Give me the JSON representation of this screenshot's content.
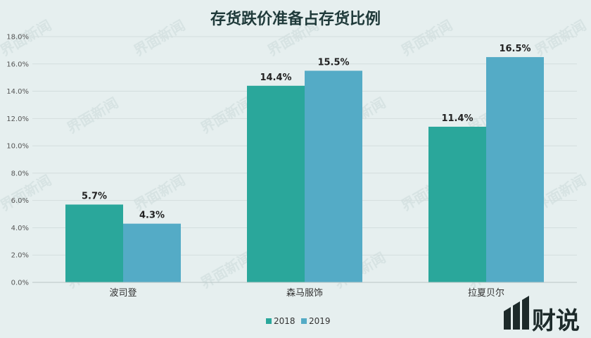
{
  "chart_data": {
    "type": "bar",
    "title": "存货跌价准备占存货比例",
    "categories": [
      "波司登",
      "森马服饰",
      "拉夏贝尔"
    ],
    "series": [
      {
        "name": "2018",
        "values": [
          5.7,
          14.4,
          11.4
        ],
        "labels": [
          "5.7%",
          "14.4%",
          "11.4%"
        ],
        "color": "#2aa79b"
      },
      {
        "name": "2019",
        "values": [
          4.3,
          15.5,
          16.5
        ],
        "labels": [
          "4.3%",
          "15.5%",
          "16.5%"
        ],
        "color": "#54abc6"
      }
    ],
    "ylim": [
      0,
      18
    ],
    "yticks": [
      "0.0%",
      "2.0%",
      "4.0%",
      "6.0%",
      "8.0%",
      "10.0%",
      "12.0%",
      "14.0%",
      "16.0%",
      "18.0%"
    ],
    "grid": true,
    "legend_position": "bottom"
  },
  "watermark": {
    "text": "界面新闻",
    "logo": "财说"
  }
}
